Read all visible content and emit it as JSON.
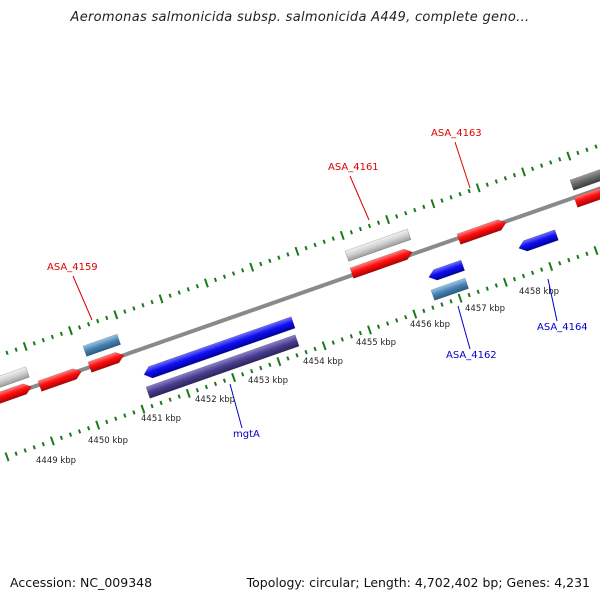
{
  "title": "Aeromonas salmonicida subsp. salmonicida A449, complete geno...",
  "footer": {
    "accession": "Accession: NC_009348",
    "summary": "Topology: circular; Length: 4,702,402 bp; Genes: 4,231"
  },
  "colors": {
    "backbone": "#8a8a8a",
    "tick": "#1a7a1a",
    "forward_gene": "#ff0000",
    "reverse_gene": "#0000ee",
    "light_gray_feature": "#c8c8c8",
    "dark_gray_feature": "#666666",
    "steel_blue_feature": "#4682b4",
    "slate_blue_feature": "#483d8b",
    "forward_label": "#dd0000",
    "reverse_label": "#0000cc"
  },
  "scale_labels": [
    "4449 kbp",
    "4450 kbp",
    "4451 kbp",
    "4452 kbp",
    "4453 kbp",
    "4454 kbp",
    "4455 kbp",
    "4456 kbp",
    "4457 kbp",
    "4458 kbp"
  ],
  "gene_labels": [
    {
      "text": "ASA_4159",
      "strand": "forward"
    },
    {
      "text": "ASA_4161",
      "strand": "forward"
    },
    {
      "text": "ASA_4163",
      "strand": "forward"
    },
    {
      "text": "mgtA",
      "strand": "reverse"
    },
    {
      "text": "ASA_4162",
      "strand": "reverse"
    },
    {
      "text": "ASA_4164",
      "strand": "reverse"
    }
  ]
}
